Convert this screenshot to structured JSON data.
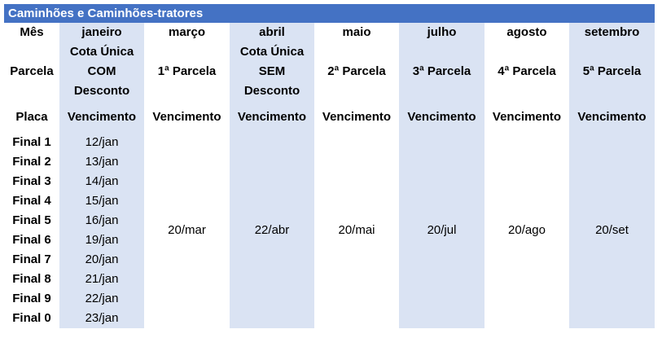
{
  "title": "Caminhões e Caminhões-tratores",
  "labels": {
    "mes": "Mês",
    "parcela": "Parcela",
    "placa": "Placa"
  },
  "colors": {
    "header_bg": "#4472c4",
    "shaded_column": "#dae3f3"
  },
  "columns": [
    {
      "mes": "janeiro",
      "parcela": [
        "Cota Única",
        "COM",
        "Desconto"
      ],
      "vencimento": "Vencimento",
      "shaded": true
    },
    {
      "mes": "março",
      "parcela": [
        "1ª Parcela"
      ],
      "vencimento": "Vencimento",
      "date": "20/mar",
      "shaded": false
    },
    {
      "mes": "abril",
      "parcela": [
        "Cota Única",
        "SEM",
        "Desconto"
      ],
      "vencimento": "Vencimento",
      "date": "22/abr",
      "shaded": true
    },
    {
      "mes": "maio",
      "parcela": [
        "2ª Parcela"
      ],
      "vencimento": "Vencimento",
      "date": "20/mai",
      "shaded": false
    },
    {
      "mes": "julho",
      "parcela": [
        "3ª Parcela"
      ],
      "vencimento": "Vencimento",
      "date": "20/jul",
      "shaded": true
    },
    {
      "mes": "agosto",
      "parcela": [
        "4ª Parcela"
      ],
      "vencimento": "Vencimento",
      "date": "20/ago",
      "shaded": false
    },
    {
      "mes": "setembro",
      "parcela": [
        "5ª Parcela"
      ],
      "vencimento": "Vencimento",
      "date": "20/set",
      "shaded": true
    }
  ],
  "rows": [
    {
      "placa": "Final 1",
      "janeiro": "12/jan"
    },
    {
      "placa": "Final 2",
      "janeiro": "13/jan"
    },
    {
      "placa": "Final 3",
      "janeiro": "14/jan"
    },
    {
      "placa": "Final 4",
      "janeiro": "15/jan"
    },
    {
      "placa": "Final 5",
      "janeiro": "16/jan"
    },
    {
      "placa": "Final 6",
      "janeiro": "19/jan"
    },
    {
      "placa": "Final 7",
      "janeiro": "20/jan"
    },
    {
      "placa": "Final 8",
      "janeiro": "21/jan"
    },
    {
      "placa": "Final 9",
      "janeiro": "22/jan"
    },
    {
      "placa": "Final 0",
      "janeiro": "23/jan"
    }
  ]
}
